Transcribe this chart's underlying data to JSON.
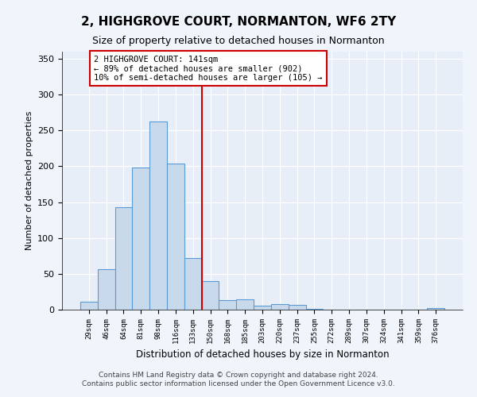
{
  "title": "2, HIGHGROVE COURT, NORMANTON, WF6 2TY",
  "subtitle": "Size of property relative to detached houses in Normanton",
  "xlabel": "Distribution of detached houses by size in Normanton",
  "ylabel": "Number of detached properties",
  "bar_color": "#c9d9ec",
  "bar_edge_color": "#5b9bd5",
  "categories": [
    "29sqm",
    "46sqm",
    "64sqm",
    "81sqm",
    "98sqm",
    "116sqm",
    "133sqm",
    "150sqm",
    "168sqm",
    "185sqm",
    "203sqm",
    "220sqm",
    "237sqm",
    "255sqm",
    "272sqm",
    "289sqm",
    "307sqm",
    "324sqm",
    "341sqm",
    "359sqm",
    "376sqm"
  ],
  "values": [
    11,
    57,
    143,
    198,
    263,
    204,
    72,
    40,
    13,
    14,
    6,
    8,
    7,
    1,
    0,
    0,
    0,
    0,
    0,
    0,
    2
  ],
  "vline_x": 6.5,
  "vline_color": "#cc0000",
  "annotation_text": "2 HIGHGROVE COURT: 141sqm\n← 89% of detached houses are smaller (902)\n10% of semi-detached houses are larger (105) →",
  "annotation_box_color": "#ffffff",
  "annotation_box_edge": "#cc0000",
  "ylim": [
    0,
    360
  ],
  "yticks": [
    0,
    50,
    100,
    150,
    200,
    250,
    300,
    350
  ],
  "footer1": "Contains HM Land Registry data © Crown copyright and database right 2024.",
  "footer2": "Contains public sector information licensed under the Open Government Licence v3.0.",
  "bg_color": "#f0f4fb",
  "plot_bg_color": "#e8eef8"
}
